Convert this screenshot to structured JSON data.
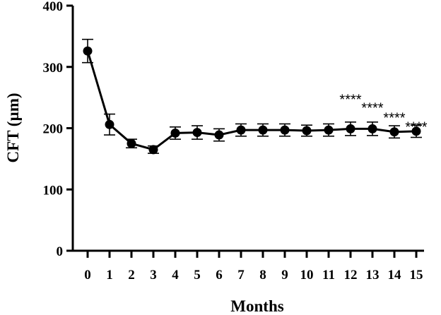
{
  "chart_data": {
    "type": "line",
    "title": "",
    "xlabel": "Months",
    "ylabel": "CFT (µm)",
    "x": [
      0,
      1,
      2,
      3,
      4,
      5,
      6,
      7,
      8,
      9,
      10,
      11,
      12,
      13,
      14,
      15
    ],
    "xticks": [
      "0",
      "1",
      "2",
      "3",
      "4",
      "5",
      "6",
      "7",
      "8",
      "9",
      "10",
      "11",
      "12",
      "13",
      "14",
      "15"
    ],
    "ylim": [
      0,
      400
    ],
    "yticks": [
      0,
      100,
      200,
      300,
      400
    ],
    "grid": false,
    "legend": "none",
    "series": [
      {
        "values": [
          326,
          206,
          175,
          165,
          192,
          193,
          189,
          197,
          197,
          197,
          196,
          197,
          199,
          199,
          194,
          195
        ],
        "error": [
          19,
          17,
          7,
          6,
          10,
          11,
          10,
          10,
          10,
          10,
          9,
          10,
          11,
          11,
          10,
          10
        ],
        "color": "#000000",
        "marker": "circle"
      }
    ],
    "annotations": [
      {
        "text": "****",
        "x": 12,
        "y": 252
      },
      {
        "text": "****",
        "x": 13,
        "y": 238
      },
      {
        "text": "****",
        "x": 14,
        "y": 222
      },
      {
        "text": "****",
        "x": 15,
        "y": 207
      }
    ]
  }
}
